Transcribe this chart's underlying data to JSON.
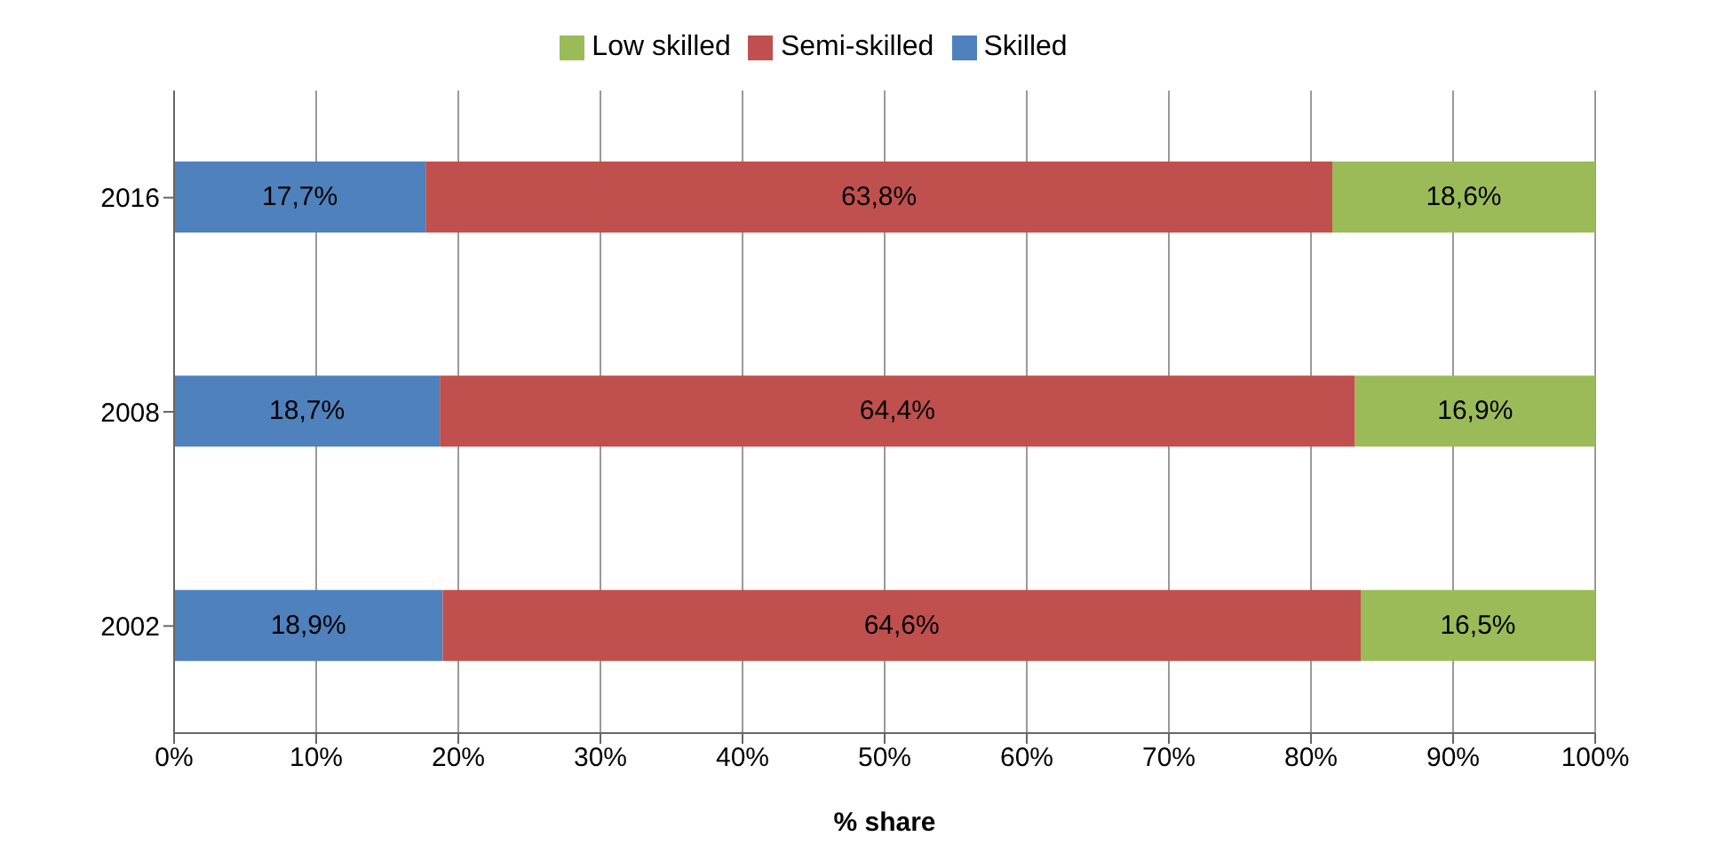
{
  "chart_data": {
    "type": "bar",
    "orientation": "horizontal",
    "stacked": true,
    "xlabel": "% share",
    "categories": [
      "2016",
      "2008",
      "2002"
    ],
    "series": [
      {
        "name": "Skilled",
        "color": "#4f81bd",
        "values": [
          17.7,
          18.7,
          18.9
        ],
        "value_labels": [
          "17,7%",
          "18,7%",
          "18,9%"
        ]
      },
      {
        "name": "Semi-skilled",
        "color": "#c0504d",
        "values": [
          63.8,
          64.4,
          64.6
        ],
        "value_labels": [
          "63,8%",
          "64,4%",
          "64,6%"
        ]
      },
      {
        "name": "Low skilled",
        "color": "#9bbb59",
        "values": [
          18.6,
          16.9,
          16.5
        ],
        "value_labels": [
          "18,6%",
          "16,9%",
          "16,5%"
        ]
      }
    ],
    "xlim": [
      0,
      100
    ],
    "xticks": [
      {
        "value": 0,
        "label": "0%"
      },
      {
        "value": 10,
        "label": "10%"
      },
      {
        "value": 20,
        "label": "20%"
      },
      {
        "value": 30,
        "label": "30%"
      },
      {
        "value": 40,
        "label": "40%"
      },
      {
        "value": 50,
        "label": "50%"
      },
      {
        "value": 60,
        "label": "60%"
      },
      {
        "value": 70,
        "label": "70%"
      },
      {
        "value": 80,
        "label": "80%"
      },
      {
        "value": 90,
        "label": "90%"
      },
      {
        "value": 100,
        "label": "100%"
      }
    ],
    "grid": "x",
    "legend": "top"
  }
}
